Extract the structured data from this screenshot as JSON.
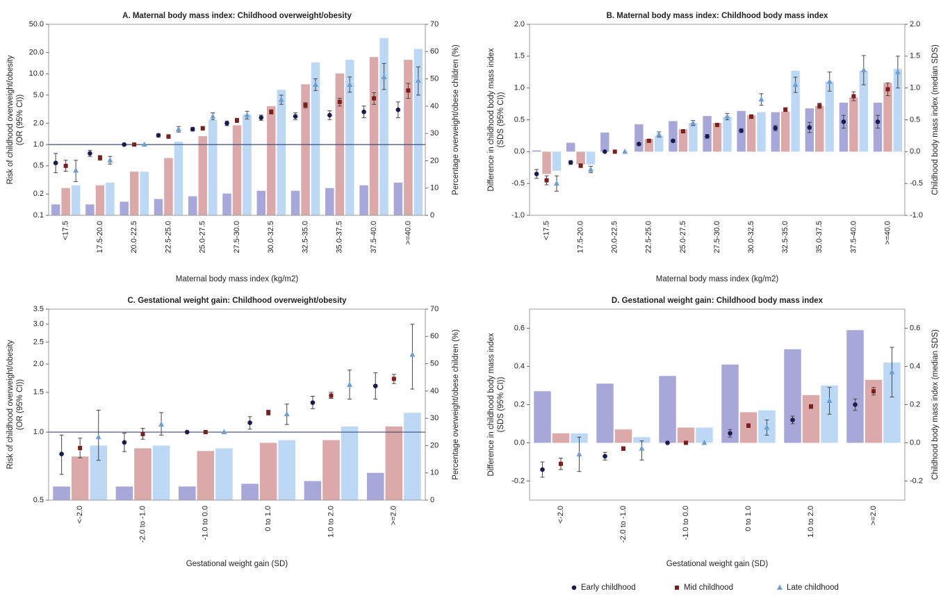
{
  "chart_data": [
    {
      "type": "combo",
      "title": "A. Maternal body mass index: Childhood overweight/obesity",
      "xlabel": "Maternal body mass index (kg/m2)",
      "ylabel": [
        "Risk of childhood overweight/obesity",
        "(OR (95% CI))"
      ],
      "y2label": "Percentage overweight/obese children (%)",
      "log": true,
      "refline": {
        "value": 1,
        "label": "1.0"
      },
      "categories": [
        "<17.5",
        "17.5-20.0",
        "20.0-22.5",
        "22.5-25.0",
        "25.0-27.5",
        "27.5-30.0",
        "30.0-32.5",
        "32.5-35.0",
        "35.0-37.5",
        "37.5-40.0",
        ">=40.0"
      ],
      "ylim": [
        0.1,
        50
      ],
      "yticks": [
        0.1,
        0.2,
        0.5,
        {
          "value": 1,
          "label": "1.0"
        },
        {
          "value": 2,
          "label": "2.0"
        },
        {
          "value": 5,
          "label": "5.0"
        },
        {
          "value": 10,
          "label": "10.0"
        },
        {
          "value": 20,
          "label": "20.0"
        },
        {
          "value": 50,
          "label": "50.0"
        }
      ],
      "y2lim": [
        0,
        70
      ],
      "y2ticks": [
        0,
        10,
        20,
        30,
        40,
        50,
        60,
        70
      ],
      "bars": [
        {
          "color": "#a7a7d9",
          "values": [
            4,
            4,
            5,
            6,
            7,
            8,
            9,
            9,
            10,
            11,
            12
          ]
        },
        {
          "color": "#dba9a9",
          "values": [
            10,
            11,
            16,
            21,
            29,
            33,
            40,
            48,
            52,
            58,
            57
          ]
        },
        {
          "color": "#bdd8f5",
          "values": [
            11,
            12,
            16,
            27,
            35,
            37,
            46,
            56,
            57,
            65,
            61
          ]
        }
      ],
      "series": [
        {
          "name": "Early childhood",
          "color": "#1b1b4f",
          "marker": "circle",
          "values": [
            0.55,
            0.75,
            1,
            1.35,
            1.65,
            2.0,
            2.4,
            2.5,
            2.6,
            2.9,
            3.1
          ],
          "lower": [
            0.4,
            0.68,
            null,
            1.28,
            1.55,
            1.85,
            2.2,
            2.25,
            2.25,
            2.4,
            2.4
          ],
          "upper": [
            0.75,
            0.83,
            null,
            1.42,
            1.75,
            2.15,
            2.6,
            2.8,
            3.0,
            3.5,
            4.0
          ]
        },
        {
          "name": "Mid childhood",
          "color": "#7a1e1e",
          "marker": "square",
          "values": [
            0.5,
            0.65,
            1,
            1.3,
            1.7,
            2.2,
            2.9,
            3.6,
            4.0,
            4.5,
            5.8
          ],
          "lower": [
            0.42,
            0.6,
            null,
            1.22,
            1.6,
            2.05,
            2.7,
            3.3,
            3.5,
            3.7,
            4.5
          ],
          "upper": [
            0.6,
            0.7,
            null,
            1.38,
            1.8,
            2.35,
            3.1,
            3.9,
            4.5,
            5.4,
            7.3
          ]
        },
        {
          "name": "Late childhood",
          "color": "#6f9fd0",
          "marker": "triangle",
          "values": [
            0.43,
            0.6,
            1,
            1.65,
            2.5,
            2.6,
            4.3,
            7.0,
            7.0,
            9.0,
            8.0
          ],
          "lower": [
            0.3,
            0.53,
            null,
            1.5,
            2.25,
            2.3,
            3.7,
            5.8,
            5.5,
            6.0,
            5.0
          ],
          "upper": [
            0.6,
            0.68,
            null,
            1.8,
            2.8,
            2.95,
            5.0,
            8.5,
            9.0,
            14.0,
            12.5
          ]
        }
      ]
    },
    {
      "type": "combo",
      "title": "B. Maternal body mass index: Childhood body mass index",
      "xlabel": "Maternal body mass index (kg/m2)",
      "ylabel": [
        "Difference in childhood body mass index",
        "(SDS (95% CI))"
      ],
      "y2label": "Childhood body mass index (median SDS)",
      "log": false,
      "categories": [
        "<17.5",
        "17.5-20.0",
        "20.0-22.5",
        "22.5-25.0",
        "25.0-27.5",
        "27.5-30.0",
        "30.0-32.5",
        "32.5-35.0",
        "35.0-37.5",
        "37.5-40.0",
        ">=40.0"
      ],
      "ylim": [
        -1,
        2
      ],
      "yticks": [
        {
          "value": -1,
          "label": "-1.0"
        },
        -0.5,
        {
          "value": 0,
          "label": "0.0"
        },
        0.5,
        {
          "value": 1,
          "label": "1.0"
        },
        1.5,
        {
          "value": 2,
          "label": "2.0"
        }
      ],
      "y2lim": [
        -1,
        2
      ],
      "y2ticks": [
        {
          "value": -1,
          "label": "-1.0"
        },
        -0.5,
        {
          "value": 0,
          "label": "0.0"
        },
        0.5,
        {
          "value": 1,
          "label": "1.0"
        },
        1.5,
        {
          "value": 2,
          "label": "2.0"
        }
      ],
      "bars": [
        {
          "color": "#a7a7d9",
          "values": [
            0.02,
            0.14,
            0.3,
            0.43,
            0.48,
            0.56,
            0.64,
            0.62,
            0.68,
            0.77,
            0.77
          ]
        },
        {
          "color": "#dba9a9",
          "values": [
            -0.35,
            -0.2,
            0.0,
            0.2,
            0.35,
            0.45,
            0.57,
            0.63,
            0.72,
            0.85,
            1.08
          ]
        },
        {
          "color": "#bdd8f5",
          "values": [
            -0.3,
            -0.2,
            0.0,
            0.25,
            0.45,
            0.55,
            0.62,
            1.27,
            1.1,
            1.27,
            1.3
          ]
        }
      ],
      "series": [
        {
          "color": "#1b1b4f",
          "marker": "circle",
          "values": [
            -0.35,
            -0.17,
            0,
            0.12,
            0.17,
            0.24,
            0.33,
            0.37,
            0.38,
            0.47,
            0.47
          ],
          "lower": [
            -0.42,
            -0.2,
            null,
            0.1,
            0.15,
            0.21,
            0.3,
            0.33,
            0.3,
            0.37,
            0.37
          ],
          "upper": [
            -0.28,
            -0.14,
            null,
            0.14,
            0.19,
            0.27,
            0.36,
            0.41,
            0.46,
            0.57,
            0.57
          ]
        },
        {
          "color": "#7a1e1e",
          "marker": "square",
          "values": [
            -0.45,
            -0.22,
            0,
            0.17,
            0.32,
            0.42,
            0.55,
            0.66,
            0.72,
            0.87,
            0.98
          ],
          "lower": [
            -0.52,
            -0.25,
            null,
            0.15,
            0.3,
            0.4,
            0.52,
            0.63,
            0.68,
            0.8,
            0.88
          ],
          "upper": [
            -0.38,
            -0.19,
            null,
            0.19,
            0.34,
            0.44,
            0.58,
            0.69,
            0.76,
            0.94,
            1.08
          ]
        },
        {
          "color": "#6f9fd0",
          "marker": "triangle",
          "values": [
            -0.5,
            -0.28,
            0,
            0.27,
            0.45,
            0.55,
            0.82,
            1.05,
            1.1,
            1.28,
            1.25
          ],
          "lower": [
            -0.62,
            -0.33,
            null,
            0.23,
            0.41,
            0.5,
            0.73,
            0.93,
            0.95,
            1.05,
            1.0
          ],
          "upper": [
            -0.38,
            -0.23,
            null,
            0.31,
            0.49,
            0.6,
            0.91,
            1.17,
            1.25,
            1.51,
            1.5
          ]
        }
      ]
    },
    {
      "type": "combo",
      "title": "C. Gestational weight gain: Childhood overweight/obesity",
      "xlabel": "Gestational weight gain (SD)",
      "ylabel": [
        "Risk of childhood overweight/obesity",
        "(OR (95% CI))"
      ],
      "y2label": "Percentage overweight/obese children (%)",
      "log": true,
      "refline": {
        "value": 1,
        "label": "1.0"
      },
      "categories": [
        "<-2.0",
        "-2.0 to -1.0",
        "-1.0 to 0.0",
        "0 to 1.0",
        "1.0 to 2.0",
        ">=2.0"
      ],
      "ylim": [
        0.5,
        3.5
      ],
      "yticks": [
        0.5,
        {
          "value": 1,
          "label": "1.0"
        },
        1.5,
        {
          "value": 2,
          "label": "2.0"
        },
        2.5,
        {
          "value": 3,
          "label": "3.0"
        },
        3.5
      ],
      "y2lim": [
        0,
        70
      ],
      "y2ticks": [
        0,
        10,
        20,
        30,
        40,
        50,
        60,
        70
      ],
      "bars": [
        {
          "color": "#a7a7d9",
          "values": [
            5,
            5,
            5,
            6,
            7,
            10
          ]
        },
        {
          "color": "#dba9a9",
          "values": [
            16,
            19,
            18,
            21,
            22,
            27
          ]
        },
        {
          "color": "#bdd8f5",
          "values": [
            20,
            20,
            19,
            22,
            27,
            32
          ]
        }
      ],
      "series": [
        {
          "color": "#1b1b4f",
          "marker": "circle",
          "values": [
            0.8,
            0.9,
            1,
            1.1,
            1.35,
            1.6
          ],
          "lower": [
            0.65,
            0.82,
            null,
            1.03,
            1.27,
            1.4
          ],
          "upper": [
            0.97,
            0.99,
            null,
            1.17,
            1.44,
            1.83
          ]
        },
        {
          "color": "#7a1e1e",
          "marker": "square",
          "values": [
            0.85,
            0.98,
            1,
            1.22,
            1.45,
            1.72
          ],
          "lower": [
            0.77,
            0.93,
            null,
            1.19,
            1.41,
            1.64
          ],
          "upper": [
            0.94,
            1.04,
            null,
            1.25,
            1.5,
            1.8
          ]
        },
        {
          "color": "#6f9fd0",
          "marker": "triangle",
          "values": [
            0.95,
            1.08,
            1,
            1.2,
            1.62,
            2.2
          ],
          "lower": [
            0.75,
            0.97,
            null,
            1.08,
            1.4,
            1.55
          ],
          "upper": [
            1.25,
            1.22,
            null,
            1.33,
            1.88,
            3.0
          ]
        }
      ]
    },
    {
      "type": "combo",
      "title": "D. Gestational weight gain: Childhood body mass index",
      "xlabel": "Gestational weight gain (SD)",
      "ylabel": [
        "Difference in childhood body mass index",
        "(SDS (95% CI))"
      ],
      "y2label": "Childhood body mass index (median SDS)",
      "log": false,
      "categories": [
        "<-2.0",
        "-2.0 to -1.0",
        "-1.0 to 0.0",
        "0 to 1.0",
        "1.0 to 2.0",
        ">=2.0"
      ],
      "ylim": [
        -0.3,
        0.7
      ],
      "yticks": [
        -0.2,
        {
          "value": 0,
          "label": "0.0"
        },
        0.2,
        0.4,
        0.6
      ],
      "y2lim": [
        -0.3,
        0.7
      ],
      "y2ticks": [
        -0.2,
        {
          "value": 0,
          "label": "0.0"
        },
        0.2,
        0.4,
        0.6
      ],
      "bars": [
        {
          "color": "#a7a7d9",
          "values": [
            0.27,
            0.31,
            0.35,
            0.41,
            0.49,
            0.59
          ]
        },
        {
          "color": "#dba9a9",
          "values": [
            0.05,
            0.07,
            0.08,
            0.16,
            0.25,
            0.33
          ]
        },
        {
          "color": "#bdd8f5",
          "values": [
            0.05,
            0.03,
            0.08,
            0.17,
            0.3,
            0.42
          ]
        }
      ],
      "series": [
        {
          "color": "#1b1b4f",
          "marker": "circle",
          "values": [
            -0.14,
            -0.07,
            0,
            0.05,
            0.12,
            0.2
          ],
          "lower": [
            -0.18,
            -0.09,
            null,
            0.03,
            0.1,
            0.17
          ],
          "upper": [
            -0.1,
            -0.05,
            null,
            0.07,
            0.14,
            0.23
          ]
        },
        {
          "color": "#7a1e1e",
          "marker": "square",
          "values": [
            -0.11,
            -0.03,
            0,
            0.09,
            0.19,
            0.27
          ],
          "lower": [
            -0.14,
            -0.04,
            null,
            0.08,
            0.18,
            0.25
          ],
          "upper": [
            -0.08,
            -0.02,
            null,
            0.1,
            0.2,
            0.29
          ]
        },
        {
          "color": "#6f9fd0",
          "marker": "triangle",
          "values": [
            -0.06,
            -0.03,
            0,
            0.08,
            0.22,
            0.37
          ],
          "lower": [
            -0.15,
            -0.09,
            null,
            0.04,
            0.15,
            0.24
          ],
          "upper": [
            0.03,
            0.01,
            null,
            0.12,
            0.29,
            0.5
          ]
        }
      ]
    }
  ]
}
